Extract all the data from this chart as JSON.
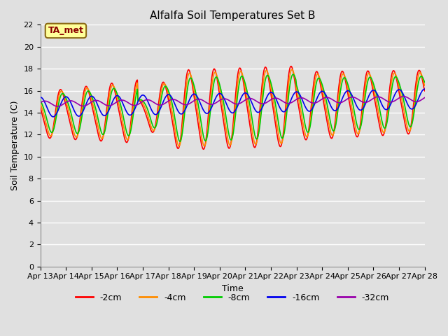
{
  "title": "Alfalfa Soil Temperatures Set B",
  "xlabel": "Time",
  "ylabel": "Soil Temperature (C)",
  "ylim": [
    0,
    22
  ],
  "x_tick_labels": [
    "Apr 13",
    "Apr 14",
    "Apr 15",
    "Apr 16",
    "Apr 17",
    "Apr 18",
    "Apr 19",
    "Apr 20",
    "Apr 21",
    "Apr 22",
    "Apr 23",
    "Apr 24",
    "Apr 25",
    "Apr 26",
    "Apr 27",
    "Apr 28"
  ],
  "annotation_text": "TA_met",
  "annotation_color": "#8B0000",
  "annotation_bg": "#FFFF99",
  "annotation_edge": "#8B6914",
  "bg_color": "#E0E0E0",
  "fig_color": "#E0E0E0",
  "grid_color": "#FFFFFF",
  "neg2cm_color": "#FF0000",
  "neg4cm_color": "#FF8C00",
  "neg8cm_color": "#00CC00",
  "neg16cm_color": "#0000EE",
  "neg32cm_color": "#9900AA",
  "legend_labels": [
    "-2cm",
    "-4cm",
    "-8cm",
    "-16cm",
    "-32cm"
  ],
  "legend_colors": [
    "#FF0000",
    "#FF8C00",
    "#00CC00",
    "#0000EE",
    "#9900AA"
  ],
  "title_fontsize": 11,
  "axis_label_fontsize": 9,
  "tick_fontsize": 8,
  "legend_fontsize": 9,
  "linewidth": 1.2
}
